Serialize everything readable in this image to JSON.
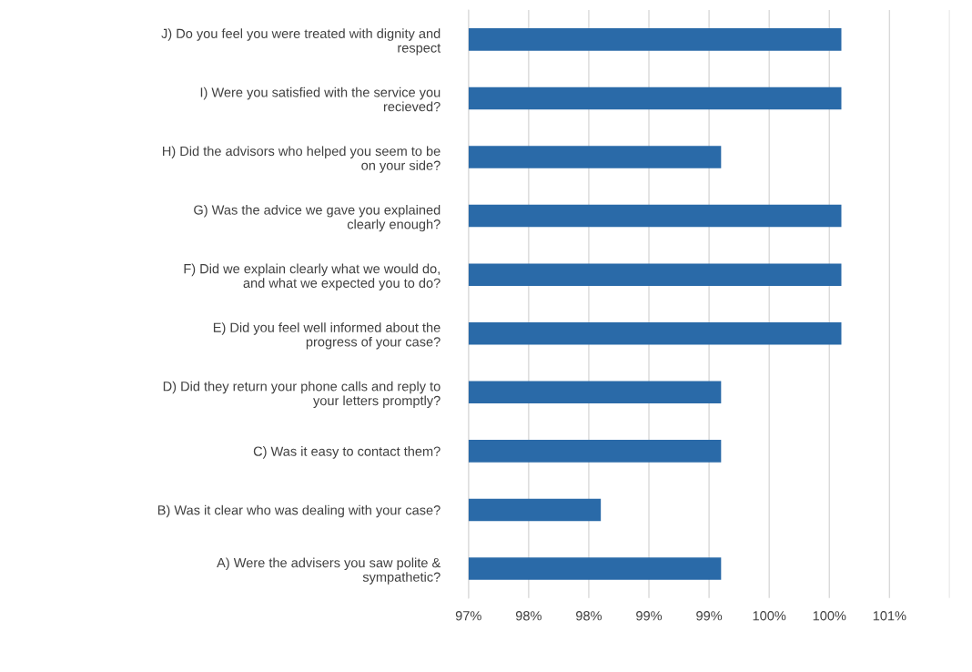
{
  "chart_data": {
    "type": "bar",
    "orientation": "horizontal",
    "categories": [
      "J) Do you feel you were treated with dignity and\nrespect",
      "I) Were you satisfied with the service you\nrecieved?",
      "H) Did the advisors who helped you seem to be\non your side?",
      "G) Was the advice we gave you explained\nclearly enough?",
      "F) Did we explain clearly what we would do,\nand what we expected you to do?",
      "E) Did you feel well informed about the\nprogress of your case?",
      "D) Did they return your phone calls and reply to\nyour letters promptly?",
      "C) Was it easy to contact them?",
      "B) Was it clear who was dealing with your case?",
      "A) Were the advisers you saw polite &\nsympathetic?"
    ],
    "values": [
      100.1,
      100.1,
      99.1,
      100.1,
      100.1,
      100.1,
      99.1,
      99.1,
      98.1,
      99.1
    ],
    "color": "#2a6aa8",
    "xlim": [
      97,
      101
    ],
    "xticks": [
      {
        "value": 97,
        "label": "97%"
      },
      {
        "value": 97.5,
        "label": "98%"
      },
      {
        "value": 98,
        "label": "98%"
      },
      {
        "value": 98.5,
        "label": "99%"
      },
      {
        "value": 99,
        "label": "99%"
      },
      {
        "value": 99.5,
        "label": "100%"
      },
      {
        "value": 100,
        "label": "100%"
      },
      {
        "value": 100.5,
        "label": "101%"
      },
      {
        "value": 101,
        "label": null
      }
    ],
    "grid": "x"
  }
}
